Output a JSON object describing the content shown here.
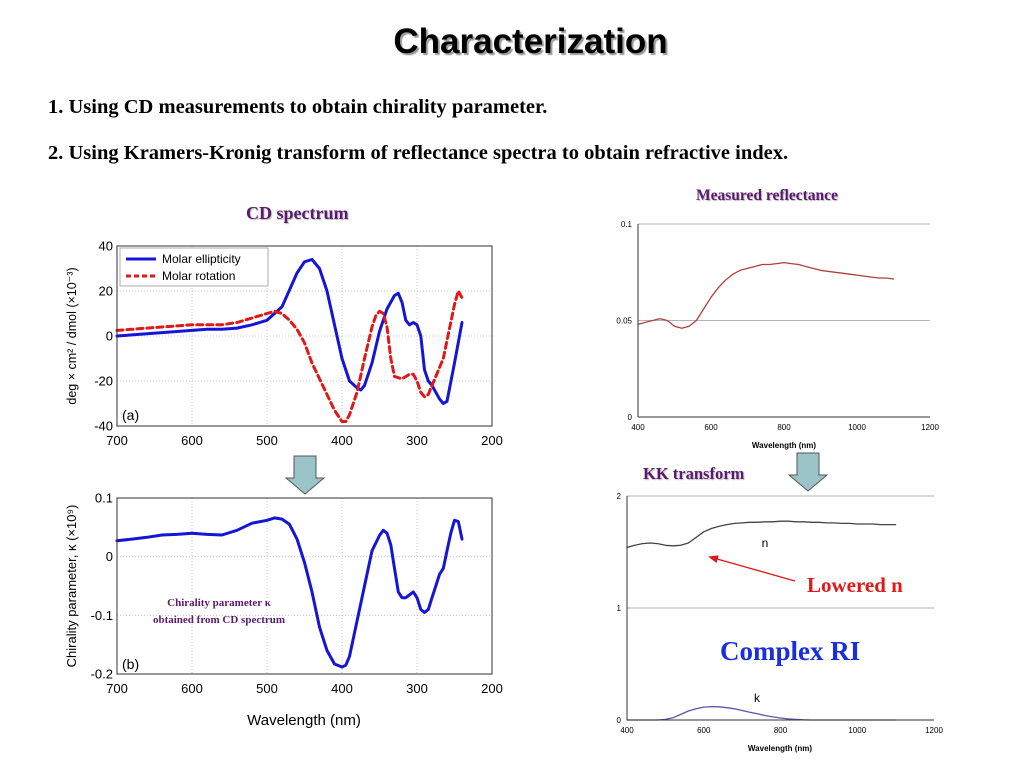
{
  "title": "Characterization",
  "points": [
    "1. Using CD measurements to obtain chirality parameter.",
    "2. Using Kramers-Kronig transform of reflectance spectra to obtain refractive index."
  ],
  "captions": {
    "cd": "CD spectrum",
    "reflectance": "Measured reflectance",
    "kk": "KK transform",
    "lowered": "Lowered n",
    "complex": "Complex RI",
    "chirality_note_1": "Chirality parameter κ",
    "chirality_note_2": "obtained from CD spectrum"
  },
  "colors": {
    "blue": "#1515d8",
    "red": "#e01818",
    "purple": "#5b1a6e",
    "reflect": "#b0403a",
    "n_line": "#444444",
    "k_line": "#5a56a8",
    "arrow": "#e01818"
  },
  "chart_data": [
    {
      "type": "line",
      "panel_label": "(a)",
      "x_ticks": [
        700,
        600,
        500,
        400,
        300,
        200
      ],
      "y_ticks": [
        40,
        20,
        0,
        -20,
        -40
      ],
      "xlim": [
        700,
        200
      ],
      "ylim": [
        -40,
        40
      ],
      "ylabel": "deg × cm² / dmol (×10⁻³)",
      "xlabel": "",
      "legend": "top-left",
      "series": [
        {
          "name": "Molar ellipticity",
          "style": "solid",
          "x": [
            700,
            680,
            660,
            640,
            620,
            600,
            580,
            560,
            540,
            520,
            500,
            480,
            460,
            450,
            440,
            430,
            420,
            410,
            400,
            390,
            380,
            375,
            370,
            360,
            350,
            340,
            330,
            325,
            320,
            315,
            310,
            305,
            300,
            295,
            290,
            285,
            280,
            275,
            270,
            265,
            260,
            250,
            240
          ],
          "y": [
            0,
            0.5,
            1,
            1.5,
            2,
            2.5,
            3,
            3,
            3.5,
            5,
            7,
            13,
            28,
            33,
            34,
            30,
            20,
            5,
            -10,
            -20,
            -23,
            -24,
            -22,
            -12,
            2,
            12,
            18,
            19,
            15,
            7,
            5,
            6,
            5,
            0,
            -15,
            -20,
            -22,
            -25,
            -28,
            -30,
            -29,
            -12,
            6
          ]
        },
        {
          "name": "Molar rotation",
          "style": "dashed",
          "x": [
            700,
            680,
            660,
            640,
            620,
            600,
            580,
            560,
            540,
            520,
            500,
            490,
            480,
            470,
            460,
            450,
            440,
            420,
            410,
            400,
            395,
            390,
            380,
            370,
            360,
            355,
            350,
            345,
            340,
            335,
            330,
            320,
            310,
            305,
            300,
            295,
            290,
            285,
            280,
            275,
            270,
            265,
            260,
            250,
            245,
            240
          ],
          "y": [
            2.5,
            3,
            3.5,
            4,
            4.5,
            5,
            5,
            5,
            6,
            8,
            10,
            11,
            10,
            7,
            3,
            -3,
            -12,
            -26,
            -33,
            -38,
            -38,
            -35,
            -25,
            -10,
            4,
            9,
            11,
            10,
            4,
            -10,
            -18,
            -19,
            -17,
            -17,
            -20,
            -25,
            -27,
            -26,
            -22,
            -18,
            -14,
            -10,
            -2,
            14,
            20,
            17
          ]
        }
      ]
    },
    {
      "type": "line",
      "panel_label": "(b)",
      "x_ticks": [
        700,
        600,
        500,
        400,
        300,
        200
      ],
      "y_ticks": [
        0.1,
        0,
        -0.1,
        -0.2
      ],
      "xlim": [
        700,
        200
      ],
      "ylim": [
        -0.2,
        0.1
      ],
      "ylabel": "Chirality parameter, κ (×10⁹)",
      "xlabel": "Wavelength (nm)",
      "series": [
        {
          "name": "",
          "x": [
            700,
            680,
            660,
            640,
            620,
            600,
            580,
            560,
            540,
            520,
            500,
            490,
            480,
            470,
            460,
            450,
            440,
            430,
            420,
            410,
            400,
            395,
            390,
            380,
            370,
            360,
            350,
            345,
            340,
            335,
            330,
            325,
            320,
            315,
            310,
            305,
            300,
            295,
            290,
            285,
            280,
            275,
            270,
            265,
            260,
            255,
            250,
            245,
            240
          ],
          "y": [
            0.027,
            0.03,
            0.033,
            0.037,
            0.038,
            0.04,
            0.038,
            0.037,
            0.045,
            0.057,
            0.062,
            0.066,
            0.064,
            0.055,
            0.03,
            -0.01,
            -0.06,
            -0.12,
            -0.16,
            -0.183,
            -0.188,
            -0.185,
            -0.17,
            -0.11,
            -0.05,
            0.01,
            0.036,
            0.045,
            0.04,
            0.02,
            -0.02,
            -0.06,
            -0.07,
            -0.07,
            -0.065,
            -0.06,
            -0.07,
            -0.09,
            -0.095,
            -0.09,
            -0.07,
            -0.05,
            -0.03,
            -0.02,
            0.01,
            0.04,
            0.062,
            0.06,
            0.03
          ]
        }
      ]
    },
    {
      "type": "line",
      "x_ticks": [
        400,
        600,
        800,
        1000,
        1200
      ],
      "y_ticks": [
        0,
        0.05,
        0.1
      ],
      "xlim": [
        400,
        1200
      ],
      "ylim": [
        0,
        0.1
      ],
      "xlabel": "Wavelength (nm)",
      "ylabel": "",
      "series": [
        {
          "name": "",
          "x": [
            400,
            420,
            440,
            460,
            480,
            500,
            520,
            540,
            560,
            580,
            600,
            620,
            640,
            660,
            680,
            700,
            720,
            740,
            760,
            780,
            800,
            820,
            840,
            860,
            880,
            900,
            920,
            940,
            960,
            980,
            1000,
            1020,
            1040,
            1060,
            1080,
            1100
          ],
          "y": [
            0.048,
            0.049,
            0.05,
            0.051,
            0.05,
            0.047,
            0.046,
            0.047,
            0.05,
            0.056,
            0.062,
            0.067,
            0.071,
            0.074,
            0.076,
            0.077,
            0.078,
            0.079,
            0.079,
            0.0795,
            0.08,
            0.0795,
            0.079,
            0.078,
            0.077,
            0.076,
            0.0755,
            0.075,
            0.0745,
            0.074,
            0.0735,
            0.073,
            0.0725,
            0.072,
            0.072,
            0.0715
          ]
        }
      ]
    },
    {
      "type": "line",
      "x_ticks": [
        400,
        600,
        800,
        1000,
        1200
      ],
      "y_ticks": [
        0,
        1,
        2
      ],
      "xlim": [
        400,
        1200
      ],
      "ylim": [
        0,
        2
      ],
      "xlabel": "Wavelength (nm)",
      "ylabel": "",
      "series": [
        {
          "name": "n",
          "x": [
            400,
            420,
            440,
            460,
            480,
            500,
            520,
            540,
            560,
            580,
            600,
            620,
            640,
            660,
            680,
            700,
            720,
            740,
            760,
            780,
            800,
            820,
            840,
            860,
            880,
            900,
            920,
            940,
            960,
            980,
            1000,
            1020,
            1040,
            1060,
            1080,
            1100
          ],
          "y": [
            1.54,
            1.56,
            1.575,
            1.58,
            1.575,
            1.56,
            1.555,
            1.56,
            1.58,
            1.63,
            1.68,
            1.71,
            1.73,
            1.745,
            1.755,
            1.76,
            1.765,
            1.765,
            1.77,
            1.77,
            1.775,
            1.775,
            1.77,
            1.77,
            1.765,
            1.765,
            1.76,
            1.76,
            1.755,
            1.755,
            1.75,
            1.75,
            1.75,
            1.745,
            1.745,
            1.745
          ]
        },
        {
          "name": "k",
          "x": [
            400,
            440,
            480,
            500,
            520,
            540,
            560,
            580,
            600,
            620,
            640,
            660,
            680,
            700,
            720,
            740,
            760,
            780,
            800,
            820,
            840,
            860,
            880,
            900,
            960,
            1000,
            1040,
            1100
          ],
          "y": [
            0,
            0,
            0,
            0.005,
            0.02,
            0.05,
            0.08,
            0.1,
            0.115,
            0.12,
            0.118,
            0.11,
            0.1,
            0.085,
            0.07,
            0.055,
            0.04,
            0.028,
            0.018,
            0.01,
            0.005,
            0.002,
            0,
            0,
            0,
            0,
            0,
            0
          ]
        }
      ]
    }
  ]
}
